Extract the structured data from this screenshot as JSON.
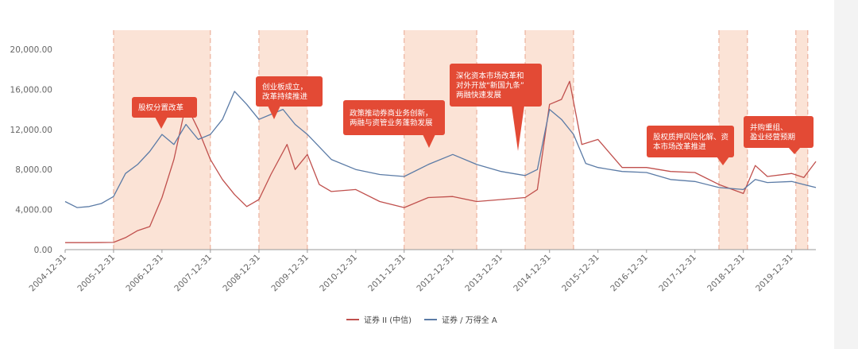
{
  "colors": {
    "securities_ii": "#c0504d",
    "securities_wind": "#5b7ba6",
    "shade": "#fbe3d6",
    "shade_border": "#e8a58f",
    "callout": "#e34a35",
    "axis": "#999999"
  },
  "chart_data": {
    "type": "line",
    "title": "",
    "xlabel": "",
    "ylabel": "",
    "ylim": [
      0,
      20000
    ],
    "x_range": [
      "2004-12-31",
      "2020-06-30"
    ],
    "y_ticks": [
      "0.00",
      "4,000.00",
      "8,000.00",
      "12,000.00",
      "16,000.00",
      "20,000.00"
    ],
    "y_tick_values": [
      0,
      4000,
      8000,
      12000,
      16000,
      20000
    ],
    "x_ticks": [
      "2004-12-31",
      "2005-12-31",
      "2006-12-31",
      "2007-12-31",
      "2008-12-31",
      "2009-12-31",
      "2010-12-31",
      "2011-12-31",
      "2012-12-31",
      "2013-12-31",
      "2014-12-31",
      "2015-12-31",
      "2016-12-31",
      "2017-12-31",
      "2018-12-31",
      "2019-12-31"
    ],
    "grid": false,
    "legend_position": "bottom",
    "series": [
      {
        "name": "证券 II (中信)",
        "color_key": "securities_ii",
        "points": [
          [
            "2004-12-31",
            700
          ],
          [
            "2005-06-30",
            700
          ],
          [
            "2005-12-31",
            720
          ],
          [
            "2006-03-31",
            1200
          ],
          [
            "2006-06-30",
            1900
          ],
          [
            "2006-09-30",
            2300
          ],
          [
            "2006-12-31",
            5200
          ],
          [
            "2007-03-31",
            9000
          ],
          [
            "2007-06-30",
            14500
          ],
          [
            "2007-09-30",
            12000
          ],
          [
            "2007-12-31",
            9000
          ],
          [
            "2008-03-31",
            7000
          ],
          [
            "2008-06-30",
            5500
          ],
          [
            "2008-09-30",
            4300
          ],
          [
            "2008-12-31",
            5000
          ],
          [
            "2009-03-31",
            7500
          ],
          [
            "2009-07-31",
            10500
          ],
          [
            "2009-09-30",
            8000
          ],
          [
            "2009-12-31",
            9500
          ],
          [
            "2010-03-31",
            6500
          ],
          [
            "2010-06-30",
            5800
          ],
          [
            "2010-12-31",
            6000
          ],
          [
            "2011-06-30",
            4800
          ],
          [
            "2011-12-31",
            4200
          ],
          [
            "2012-06-30",
            5200
          ],
          [
            "2012-12-31",
            5300
          ],
          [
            "2013-06-30",
            4800
          ],
          [
            "2013-12-31",
            5000
          ],
          [
            "2014-06-30",
            5200
          ],
          [
            "2014-09-30",
            6000
          ],
          [
            "2014-12-31",
            14500
          ],
          [
            "2015-03-31",
            15000
          ],
          [
            "2015-05-31",
            16800
          ],
          [
            "2015-08-31",
            10500
          ],
          [
            "2015-12-31",
            11000
          ],
          [
            "2016-06-30",
            8200
          ],
          [
            "2016-12-31",
            8200
          ],
          [
            "2017-06-30",
            7800
          ],
          [
            "2017-12-31",
            7700
          ],
          [
            "2018-06-30",
            6500
          ],
          [
            "2018-12-31",
            5600
          ],
          [
            "2019-03-31",
            8400
          ],
          [
            "2019-06-30",
            7300
          ],
          [
            "2019-12-31",
            7600
          ],
          [
            "2020-03-31",
            7200
          ],
          [
            "2020-06-30",
            8800
          ]
        ]
      },
      {
        "name": "证券 / 万得全 A",
        "color_key": "securities_wind",
        "points": [
          [
            "2004-12-31",
            4800
          ],
          [
            "2005-03-31",
            4200
          ],
          [
            "2005-06-30",
            4300
          ],
          [
            "2005-09-30",
            4600
          ],
          [
            "2005-12-31",
            5300
          ],
          [
            "2006-03-31",
            7600
          ],
          [
            "2006-06-30",
            8500
          ],
          [
            "2006-09-30",
            9800
          ],
          [
            "2006-12-31",
            11500
          ],
          [
            "2007-03-31",
            10500
          ],
          [
            "2007-06-30",
            12500
          ],
          [
            "2007-09-30",
            11000
          ],
          [
            "2007-12-31",
            11500
          ],
          [
            "2008-03-31",
            13000
          ],
          [
            "2008-06-30",
            15800
          ],
          [
            "2008-09-30",
            14500
          ],
          [
            "2008-12-31",
            13000
          ],
          [
            "2009-03-31",
            13500
          ],
          [
            "2009-06-30",
            14000
          ],
          [
            "2009-09-30",
            12500
          ],
          [
            "2009-12-31",
            11500
          ],
          [
            "2010-06-30",
            9000
          ],
          [
            "2010-12-31",
            8000
          ],
          [
            "2011-06-30",
            7500
          ],
          [
            "2011-12-31",
            7300
          ],
          [
            "2012-06-30",
            8500
          ],
          [
            "2012-12-31",
            9500
          ],
          [
            "2013-06-30",
            8500
          ],
          [
            "2013-12-31",
            7800
          ],
          [
            "2014-06-30",
            7400
          ],
          [
            "2014-09-30",
            8000
          ],
          [
            "2014-12-31",
            14000
          ],
          [
            "2015-03-31",
            13000
          ],
          [
            "2015-06-30",
            11500
          ],
          [
            "2015-09-30",
            8600
          ],
          [
            "2015-12-31",
            8200
          ],
          [
            "2016-06-30",
            7800
          ],
          [
            "2016-12-31",
            7700
          ],
          [
            "2017-06-30",
            7000
          ],
          [
            "2017-12-31",
            6800
          ],
          [
            "2018-06-30",
            6200
          ],
          [
            "2018-12-31",
            6000
          ],
          [
            "2019-03-31",
            7000
          ],
          [
            "2019-06-30",
            6700
          ],
          [
            "2019-12-31",
            6800
          ],
          [
            "2020-03-31",
            6500
          ],
          [
            "2020-06-30",
            6200
          ]
        ]
      }
    ],
    "shaded_periods": [
      [
        "2005-12-31",
        "2007-12-31"
      ],
      [
        "2008-12-31",
        "2009-12-31"
      ],
      [
        "2011-12-31",
        "2013-06-30"
      ],
      [
        "2014-06-30",
        "2015-06-30"
      ],
      [
        "2018-06-30",
        "2019-01-31"
      ],
      [
        "2020-01-31",
        "2020-04-30"
      ]
    ],
    "annotations": [
      {
        "lines": [
          "股权分置改革"
        ]
      },
      {
        "lines": [
          "创业板成立，",
          "改革持续推进"
        ]
      },
      {
        "lines": [
          "政策推动券商业务创新，",
          "两融与资管业务蓬勃发展"
        ]
      },
      {
        "lines": [
          "深化资本市场改革和",
          "对外开放“新国九条”",
          "两融快速发展"
        ]
      },
      {
        "lines": [
          "股权质押风险化解、资",
          "本市场改革推进"
        ]
      },
      {
        "lines": [
          "并购重组、",
          "盈业经营预期"
        ]
      }
    ]
  },
  "legend": [
    {
      "label": "证券 II (中信)",
      "color_key": "securities_ii"
    },
    {
      "label": "证券 / 万得全 A",
      "color_key": "securities_wind"
    }
  ]
}
